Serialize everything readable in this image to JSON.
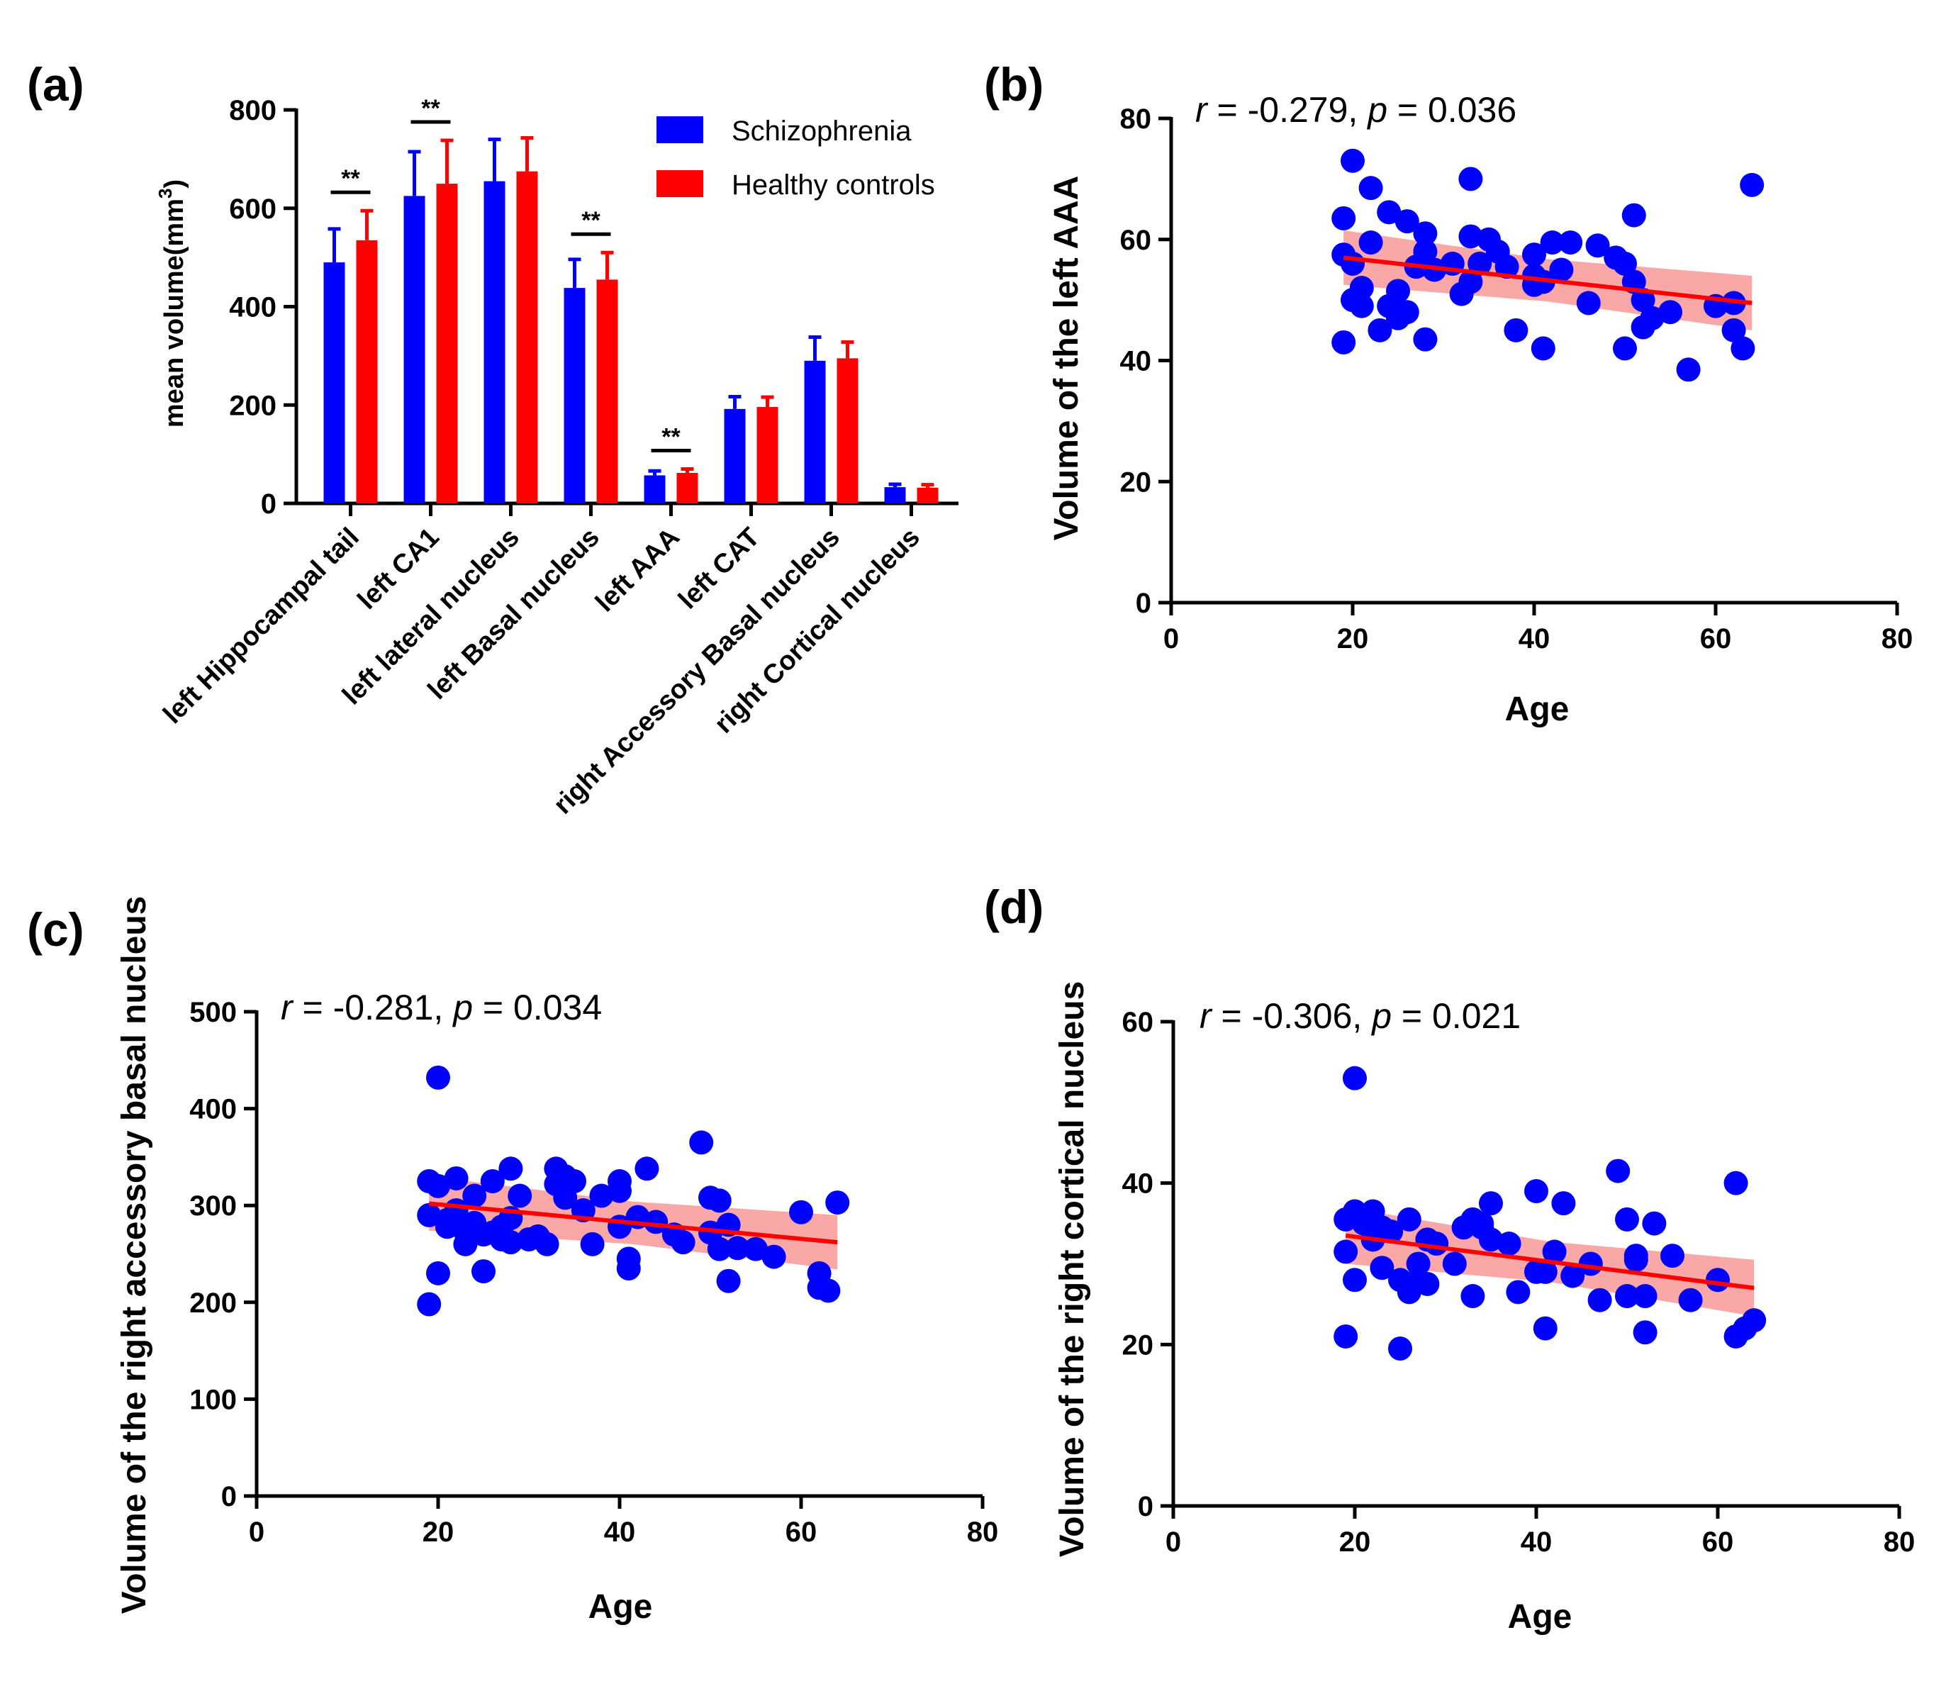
{
  "colors": {
    "schizophrenia": "#0000FF",
    "healthy": "#FF0000",
    "fit_line": "#FF0000",
    "fit_band": "#F88A8A",
    "axis": "#000000"
  },
  "chart_data": [
    {
      "id": "a",
      "type": "bar",
      "panel_label": "(a)",
      "ylabel": "mean volume(mm³)",
      "ylabel_main": "mean volume(mm",
      "ylabel_sup": "3",
      "ylabel_end": ")",
      "ylim": [
        0,
        800
      ],
      "yticks": [
        0,
        200,
        400,
        600,
        800
      ],
      "categories": [
        "left Hippocampal tail",
        "left CA1",
        "left lateral nucleus",
        "left Basal nucleus",
        "left AAA",
        "left CAT",
        "right Accessory Basal nucleus",
        "right Cortical nucleus"
      ],
      "series": [
        {
          "name": "Schizophrenia",
          "values": [
            490,
            625,
            655,
            438,
            57,
            192,
            290,
            33
          ],
          "errors": [
            68,
            90,
            85,
            58,
            9,
            25,
            48,
            6
          ]
        },
        {
          "name": "Healthy controls",
          "values": [
            535,
            650,
            675,
            455,
            62,
            196,
            295,
            32
          ],
          "errors": [
            60,
            88,
            68,
            55,
            8,
            20,
            33,
            6
          ]
        }
      ],
      "significance": [
        {
          "category_index": 0,
          "label": "**"
        },
        {
          "category_index": 1,
          "label": "**"
        },
        {
          "category_index": 3,
          "label": "**"
        },
        {
          "category_index": 4,
          "label": "**"
        }
      ],
      "legend": [
        "Schizophrenia",
        "Healthy controls"
      ],
      "legend_position": "top-right"
    },
    {
      "id": "b",
      "type": "scatter",
      "panel_label": "(b)",
      "xlabel": "Age",
      "ylabel": "Volume of the left AAA",
      "xlim": [
        0,
        80
      ],
      "ylim": [
        0,
        80
      ],
      "xticks": [
        0,
        20,
        40,
        60,
        80
      ],
      "yticks": [
        0,
        20,
        40,
        60,
        80
      ],
      "annotation": {
        "r_label": "r",
        "r_value": " = -0.279, ",
        "p_label": "p",
        "p_value": " = 0.036"
      },
      "fit": {
        "x": [
          19,
          64
        ],
        "y": [
          57,
          49.5
        ],
        "band": [
          3.5,
          4.5
        ]
      },
      "x": [
        19,
        19,
        19,
        20,
        20,
        20,
        21,
        21,
        22,
        22,
        23,
        24,
        24,
        25,
        25,
        26,
        26,
        27,
        28,
        28,
        28,
        29,
        31,
        32,
        33,
        33,
        33,
        34,
        35,
        36,
        37,
        38,
        40,
        40,
        40,
        41,
        41,
        42,
        43,
        44,
        46,
        47,
        49,
        50,
        50,
        51,
        51,
        52,
        52,
        53,
        55,
        57,
        60,
        62,
        62,
        63,
        64
      ],
      "y": [
        63.5,
        57.5,
        43,
        73,
        56,
        50,
        52,
        49,
        68.5,
        59.5,
        45,
        49,
        64.5,
        51.5,
        47,
        63,
        48,
        55.5,
        61,
        58,
        43.5,
        55,
        56,
        51,
        70,
        60.5,
        53,
        56,
        60,
        58,
        55.5,
        45,
        57.5,
        54,
        52.5,
        53,
        42,
        59.5,
        55,
        59.5,
        49.5,
        59,
        57,
        56,
        42,
        64,
        53,
        50,
        45.5,
        47,
        48,
        38.5,
        49,
        49.5,
        45,
        42,
        69
      ]
    },
    {
      "id": "c",
      "type": "scatter",
      "panel_label": "(c)",
      "xlabel": "Age",
      "ylabel": "Volume of the right accessory basal nucleus",
      "xlim": [
        0,
        80
      ],
      "ylim": [
        0,
        500
      ],
      "xticks": [
        0,
        20,
        40,
        60,
        80
      ],
      "yticks": [
        0,
        100,
        200,
        300,
        400,
        500
      ],
      "annotation": {
        "r_label": "r",
        "r_value": " = -0.281, ",
        "p_label": "p",
        "p_value": " = 0.034"
      },
      "fit": {
        "x": [
          19,
          64
        ],
        "y": [
          302,
          262
        ],
        "band": [
          22,
          28
        ]
      },
      "x": [
        19,
        19,
        19,
        20,
        20,
        20,
        21,
        21,
        22,
        22,
        23,
        23,
        24,
        24,
        25,
        25,
        26,
        26,
        27,
        27,
        28,
        28,
        28,
        29,
        30,
        31,
        32,
        33,
        33,
        34,
        34,
        35,
        36,
        37,
        38,
        40,
        40,
        40,
        41,
        41,
        42,
        43,
        44,
        46,
        47,
        49,
        50,
        50,
        51,
        51,
        52,
        52,
        53,
        55,
        57,
        60,
        62,
        62,
        63,
        64
      ],
      "y": [
        325,
        290,
        198,
        432,
        230,
        320,
        285,
        278,
        328,
        295,
        273,
        260,
        310,
        282,
        232,
        270,
        272,
        325,
        265,
        278,
        338,
        287,
        262,
        310,
        265,
        268,
        260,
        338,
        322,
        308,
        330,
        325,
        295,
        260,
        310,
        278,
        325,
        315,
        245,
        235,
        288,
        338,
        283,
        270,
        262,
        365,
        308,
        272,
        305,
        255,
        222,
        280,
        256,
        255,
        247,
        293,
        230,
        215,
        212,
        303
      ]
    },
    {
      "id": "d",
      "type": "scatter",
      "panel_label": "(d)",
      "xlabel": "Age",
      "ylabel": "Volume of the right cortical nucleus",
      "xlim": [
        0,
        80
      ],
      "ylim": [
        0,
        60
      ],
      "xticks": [
        0,
        20,
        40,
        60,
        80
      ],
      "yticks": [
        0,
        20,
        40,
        60
      ],
      "annotation": {
        "r_label": "r",
        "r_value": " = -0.306, ",
        "p_label": "p",
        "p_value": " = 0.021"
      },
      "fit": {
        "x": [
          19,
          64
        ],
        "y": [
          33.5,
          27
        ],
        "band": [
          2.5,
          3.5
        ]
      },
      "x": [
        19,
        19,
        19,
        20,
        20,
        20,
        21,
        21,
        22,
        22,
        23,
        23,
        24,
        25,
        25,
        26,
        26,
        27,
        27,
        28,
        28,
        29,
        31,
        32,
        33,
        33,
        34,
        34,
        35,
        35,
        37,
        38,
        40,
        40,
        41,
        41,
        42,
        43,
        44,
        46,
        47,
        49,
        50,
        50,
        51,
        51,
        52,
        52,
        53,
        55,
        57,
        60,
        62,
        62,
        63,
        64
      ],
      "y": [
        35.5,
        31.5,
        21,
        53,
        28,
        36.5,
        35,
        36,
        33,
        36.5,
        29.5,
        34.5,
        34,
        19.5,
        28,
        26.5,
        35.5,
        30,
        28,
        33,
        27.5,
        32.5,
        30,
        34.5,
        35.5,
        26,
        35,
        34.5,
        37.5,
        33,
        32.5,
        26.5,
        39,
        29,
        22,
        29,
        31.5,
        37.5,
        28.5,
        30,
        25.5,
        41.5,
        35.5,
        26,
        31,
        30.5,
        26,
        21.5,
        35,
        31,
        25.5,
        28,
        40,
        21,
        22,
        23
      ]
    }
  ]
}
